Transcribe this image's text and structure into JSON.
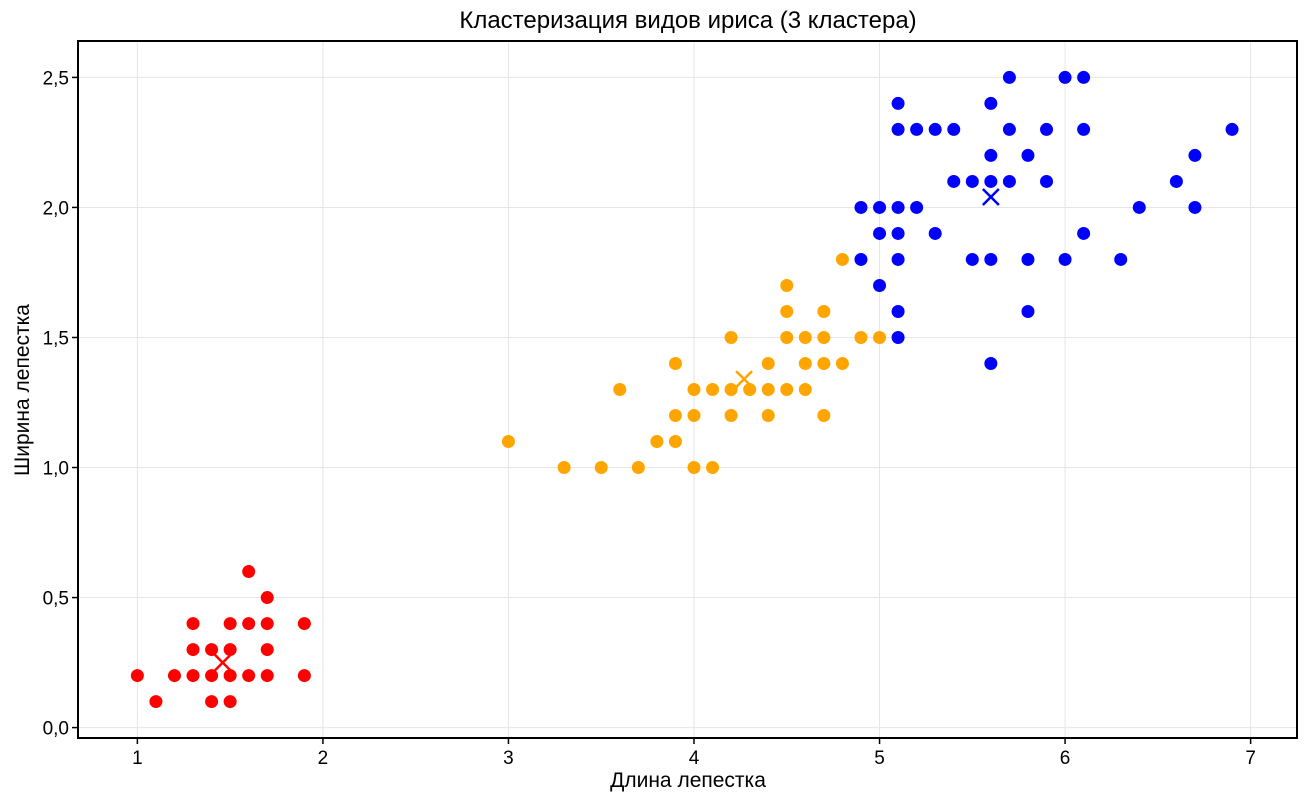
{
  "chart_data": {
    "type": "scatter",
    "title": "Кластеризация видов ириса (3 кластера)",
    "xlabel": "Длина лепестка",
    "ylabel": "Ширина лепестка",
    "xlim": [
      0.68,
      7.25
    ],
    "ylim": [
      -0.04,
      2.64
    ],
    "xticks": [
      1,
      2,
      3,
      4,
      5,
      6,
      7
    ],
    "xtick_labels": [
      "1",
      "2",
      "3",
      "4",
      "5",
      "6",
      "7"
    ],
    "yticks": [
      0,
      0.5,
      1,
      1.5,
      2,
      2.5
    ],
    "ytick_labels": [
      "0,0",
      "0,5",
      "1,0",
      "1,5",
      "2,0",
      "2,5"
    ],
    "grid": true,
    "series": [
      {
        "color": "#ff0000",
        "points": [
          [
            1.0,
            0.2
          ],
          [
            1.1,
            0.1
          ],
          [
            1.2,
            0.2
          ],
          [
            1.3,
            0.2
          ],
          [
            1.3,
            0.3
          ],
          [
            1.3,
            0.4
          ],
          [
            1.4,
            0.1
          ],
          [
            1.4,
            0.2
          ],
          [
            1.4,
            0.3
          ],
          [
            1.5,
            0.1
          ],
          [
            1.5,
            0.2
          ],
          [
            1.5,
            0.3
          ],
          [
            1.5,
            0.4
          ],
          [
            1.6,
            0.2
          ],
          [
            1.6,
            0.4
          ],
          [
            1.6,
            0.6
          ],
          [
            1.7,
            0.2
          ],
          [
            1.7,
            0.3
          ],
          [
            1.7,
            0.4
          ],
          [
            1.7,
            0.5
          ],
          [
            1.9,
            0.2
          ],
          [
            1.9,
            0.4
          ]
        ],
        "centroid": [
          1.46,
          0.25
        ]
      },
      {
        "color": "#ffa500",
        "points": [
          [
            3.0,
            1.1
          ],
          [
            3.3,
            1.0
          ],
          [
            3.5,
            1.0
          ],
          [
            3.6,
            1.3
          ],
          [
            3.7,
            1.0
          ],
          [
            3.8,
            1.1
          ],
          [
            3.9,
            1.1
          ],
          [
            3.9,
            1.2
          ],
          [
            3.9,
            1.4
          ],
          [
            4.0,
            1.0
          ],
          [
            4.0,
            1.2
          ],
          [
            4.0,
            1.3
          ],
          [
            4.1,
            1.0
          ],
          [
            4.1,
            1.3
          ],
          [
            4.2,
            1.2
          ],
          [
            4.2,
            1.3
          ],
          [
            4.2,
            1.5
          ],
          [
            4.3,
            1.3
          ],
          [
            4.4,
            1.2
          ],
          [
            4.4,
            1.3
          ],
          [
            4.4,
            1.4
          ],
          [
            4.5,
            1.3
          ],
          [
            4.5,
            1.5
          ],
          [
            4.5,
            1.6
          ],
          [
            4.5,
            1.7
          ],
          [
            4.6,
            1.3
          ],
          [
            4.6,
            1.4
          ],
          [
            4.6,
            1.5
          ],
          [
            4.7,
            1.2
          ],
          [
            4.7,
            1.4
          ],
          [
            4.7,
            1.5
          ],
          [
            4.7,
            1.6
          ],
          [
            4.8,
            1.4
          ],
          [
            4.8,
            1.8
          ],
          [
            4.9,
            1.5
          ],
          [
            5.0,
            1.5
          ]
        ],
        "centroid": [
          4.27,
          1.34
        ]
      },
      {
        "color": "#0000ff",
        "points": [
          [
            4.9,
            1.8
          ],
          [
            4.9,
            2.0
          ],
          [
            5.0,
            1.7
          ],
          [
            5.0,
            1.9
          ],
          [
            5.0,
            2.0
          ],
          [
            5.1,
            1.5
          ],
          [
            5.1,
            1.6
          ],
          [
            5.1,
            1.8
          ],
          [
            5.1,
            1.9
          ],
          [
            5.1,
            2.0
          ],
          [
            5.1,
            2.3
          ],
          [
            5.1,
            2.4
          ],
          [
            5.2,
            2.0
          ],
          [
            5.2,
            2.3
          ],
          [
            5.3,
            1.9
          ],
          [
            5.3,
            2.3
          ],
          [
            5.4,
            2.1
          ],
          [
            5.4,
            2.3
          ],
          [
            5.5,
            1.8
          ],
          [
            5.5,
            2.1
          ],
          [
            5.6,
            1.4
          ],
          [
            5.6,
            1.8
          ],
          [
            5.6,
            2.1
          ],
          [
            5.6,
            2.2
          ],
          [
            5.6,
            2.4
          ],
          [
            5.7,
            2.1
          ],
          [
            5.7,
            2.3
          ],
          [
            5.7,
            2.5
          ],
          [
            5.8,
            1.6
          ],
          [
            5.8,
            1.8
          ],
          [
            5.8,
            2.2
          ],
          [
            5.9,
            2.1
          ],
          [
            5.9,
            2.3
          ],
          [
            6.0,
            1.8
          ],
          [
            6.0,
            2.5
          ],
          [
            6.1,
            1.9
          ],
          [
            6.1,
            2.3
          ],
          [
            6.1,
            2.5
          ],
          [
            6.3,
            1.8
          ],
          [
            6.4,
            2.0
          ],
          [
            6.6,
            2.1
          ],
          [
            6.7,
            2.0
          ],
          [
            6.7,
            2.2
          ],
          [
            6.9,
            2.3
          ]
        ],
        "centroid": [
          5.6,
          2.04
        ]
      }
    ]
  }
}
